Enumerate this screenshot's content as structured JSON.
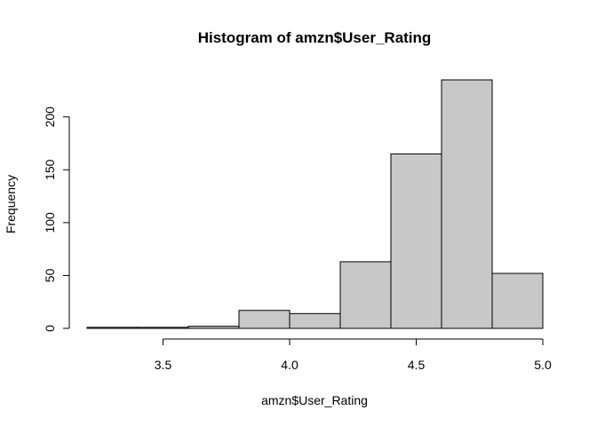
{
  "chart_data": {
    "type": "bar",
    "title": "Histogram of amzn$User_Rating",
    "xlabel": "amzn$User_Rating",
    "ylabel": "Frequency",
    "bins": [
      {
        "start": 3.2,
        "end": 3.4,
        "count": 1
      },
      {
        "start": 3.4,
        "end": 3.6,
        "count": 1
      },
      {
        "start": 3.6,
        "end": 3.8,
        "count": 2
      },
      {
        "start": 3.8,
        "end": 4.0,
        "count": 17
      },
      {
        "start": 4.0,
        "end": 4.2,
        "count": 14
      },
      {
        "start": 4.2,
        "end": 4.4,
        "count": 63
      },
      {
        "start": 4.4,
        "end": 4.6,
        "count": 165
      },
      {
        "start": 4.6,
        "end": 4.8,
        "count": 235
      },
      {
        "start": 4.8,
        "end": 5.0,
        "count": 52
      }
    ],
    "xlim": [
      3.2,
      5.0
    ],
    "ylim": [
      0,
      235
    ],
    "xticks": [
      3.5,
      4.0,
      4.5,
      5.0
    ],
    "xtick_labels": [
      "3.5",
      "4.0",
      "4.5",
      "5.0"
    ],
    "yticks": [
      0,
      50,
      100,
      150,
      200
    ],
    "ytick_labels": [
      "0",
      "50",
      "100",
      "150",
      "200"
    ],
    "grid": false,
    "bar_color": "#c8c8c8"
  }
}
